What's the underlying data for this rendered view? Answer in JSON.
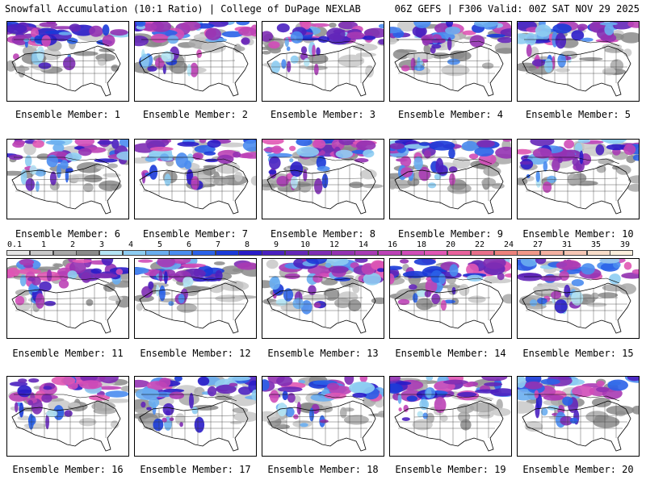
{
  "header": {
    "title_left": "Snowfall Accumulation (10:1 Ratio) | College of DuPage NEXLAB",
    "title_right": "06Z GEFS | F306 Valid: 00Z SAT NOV 29 2025"
  },
  "members": [
    {
      "label": "Ensemble Member: 1"
    },
    {
      "label": "Ensemble Member: 2"
    },
    {
      "label": "Ensemble Member: 3"
    },
    {
      "label": "Ensemble Member: 4"
    },
    {
      "label": "Ensemble Member: 5"
    },
    {
      "label": "Ensemble Member: 6"
    },
    {
      "label": "Ensemble Member: 7"
    },
    {
      "label": "Ensemble Member: 8"
    },
    {
      "label": "Ensemble Member: 9"
    },
    {
      "label": "Ensemble Member: 10"
    },
    {
      "label": "Ensemble Member: 11"
    },
    {
      "label": "Ensemble Member: 12"
    },
    {
      "label": "Ensemble Member: 13"
    },
    {
      "label": "Ensemble Member: 14"
    },
    {
      "label": "Ensemble Member: 15"
    },
    {
      "label": "Ensemble Member: 16"
    },
    {
      "label": "Ensemble Member: 17"
    },
    {
      "label": "Ensemble Member: 18"
    },
    {
      "label": "Ensemble Member: 19"
    },
    {
      "label": "Ensemble Member: 20"
    }
  ],
  "colorbar": {
    "labels": [
      "0.1",
      "1",
      "2",
      "3",
      "4",
      "5",
      "6",
      "7",
      "8",
      "9",
      "10",
      "12",
      "14",
      "16",
      "18",
      "20",
      "22",
      "24",
      "27",
      "31",
      "35",
      "39"
    ],
    "colors": [
      "#e6e6e6",
      "#c8c8c8",
      "#a8a8a8",
      "#8a8a8a",
      "#b4e4f4",
      "#8ecdf2",
      "#6aaef0",
      "#4a8cf0",
      "#2a62e8",
      "#1a3ad8",
      "#2a1cc8",
      "#4a20c0",
      "#6426b8",
      "#7e2cb4",
      "#9432b2",
      "#a83ab4",
      "#bc42b6",
      "#d04cb8",
      "#e056b4",
      "#e8629c",
      "#e8708a",
      "#ec827c",
      "#f09888",
      "#f4b0a0",
      "#f6c6b4",
      "#f8dcc8",
      "#fbeedc"
    ]
  }
}
